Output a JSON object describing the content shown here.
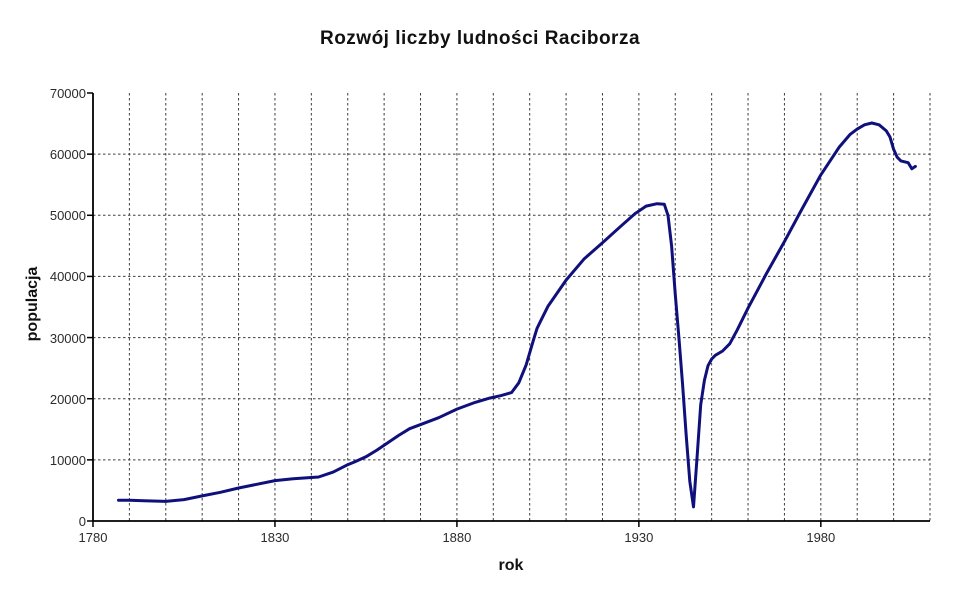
{
  "chart_data": {
    "type": "line",
    "title": "Rozwój liczby ludności Raciborza",
    "xlabel": "rok",
    "ylabel": "populacja",
    "x_range": [
      1780,
      2010
    ],
    "y_range": [
      0,
      70000
    ],
    "x_grid_step": 10,
    "y_grid_step": 10000,
    "x_tick_labels": [
      1780,
      1830,
      1880,
      1930,
      1980
    ],
    "y_tick_labels": [
      0,
      10000,
      20000,
      30000,
      40000,
      50000,
      60000,
      70000
    ],
    "grid": true,
    "legend_position": "none",
    "series": [
      {
        "name": "populacja",
        "points": [
          [
            1787,
            3400
          ],
          [
            1790,
            3400
          ],
          [
            1794,
            3300
          ],
          [
            1800,
            3200
          ],
          [
            1805,
            3500
          ],
          [
            1810,
            4100
          ],
          [
            1815,
            4700
          ],
          [
            1820,
            5400
          ],
          [
            1825,
            6000
          ],
          [
            1830,
            6600
          ],
          [
            1835,
            6900
          ],
          [
            1842,
            7200
          ],
          [
            1846,
            8000
          ],
          [
            1850,
            9200
          ],
          [
            1852,
            9700
          ],
          [
            1855,
            10500
          ],
          [
            1858,
            11600
          ],
          [
            1861,
            12800
          ],
          [
            1864,
            14000
          ],
          [
            1867,
            15100
          ],
          [
            1871,
            16000
          ],
          [
            1875,
            16900
          ],
          [
            1880,
            18300
          ],
          [
            1885,
            19400
          ],
          [
            1889,
            20100
          ],
          [
            1892,
            20500
          ],
          [
            1895,
            21000
          ],
          [
            1897,
            22600
          ],
          [
            1899,
            25500
          ],
          [
            1901,
            29500
          ],
          [
            1902,
            31500
          ],
          [
            1903,
            32700
          ],
          [
            1905,
            35100
          ],
          [
            1910,
            39400
          ],
          [
            1915,
            42900
          ],
          [
            1920,
            45500
          ],
          [
            1925,
            48200
          ],
          [
            1929,
            50300
          ],
          [
            1932,
            51500
          ],
          [
            1935,
            51900
          ],
          [
            1937,
            51800
          ],
          [
            1938,
            50000
          ],
          [
            1939,
            45000
          ],
          [
            1940,
            37000
          ],
          [
            1941,
            30000
          ],
          [
            1942,
            22500
          ],
          [
            1943,
            14000
          ],
          [
            1944,
            6500
          ],
          [
            1945,
            2300
          ],
          [
            1946,
            10500
          ],
          [
            1947,
            19000
          ],
          [
            1948,
            23000
          ],
          [
            1949,
            25400
          ],
          [
            1950,
            26500
          ],
          [
            1951,
            27100
          ],
          [
            1953,
            27800
          ],
          [
            1955,
            29000
          ],
          [
            1957,
            31200
          ],
          [
            1960,
            34800
          ],
          [
            1965,
            40400
          ],
          [
            1970,
            45700
          ],
          [
            1975,
            51200
          ],
          [
            1980,
            56600
          ],
          [
            1985,
            61100
          ],
          [
            1988,
            63200
          ],
          [
            1990,
            64100
          ],
          [
            1992,
            64800
          ],
          [
            1994,
            65100
          ],
          [
            1996,
            64800
          ],
          [
            1998,
            63800
          ],
          [
            1999,
            62800
          ],
          [
            2000,
            60800
          ],
          [
            2001,
            59500
          ],
          [
            2002,
            58900
          ],
          [
            2004,
            58600
          ],
          [
            2005,
            57600
          ],
          [
            2006,
            58000
          ]
        ]
      }
    ]
  },
  "colors": {
    "line": "#10107c",
    "grid": "#3d3d3d",
    "axis": "#000000",
    "text": "#2b2b2b",
    "background": "#ffffff"
  }
}
